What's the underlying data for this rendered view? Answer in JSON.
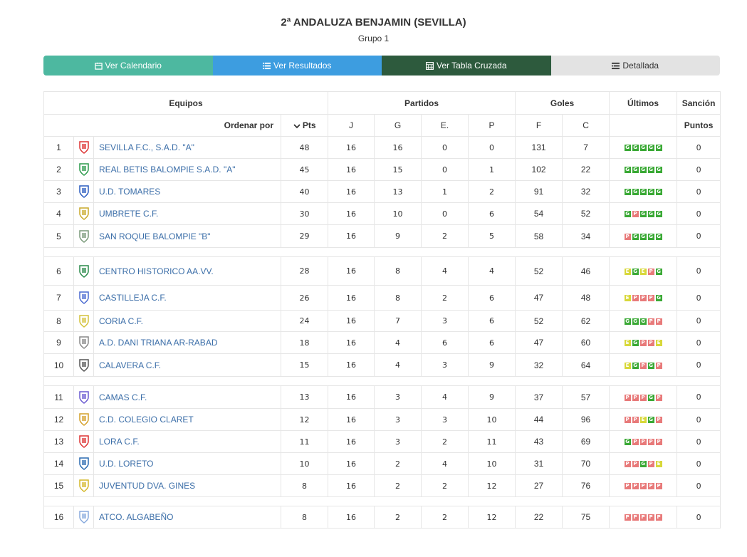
{
  "header": {
    "title": "2ª ANDALUZA BENJAMIN (SEVILLA)",
    "subtitle": "Grupo 1"
  },
  "tabs": [
    {
      "label": "Ver Calendario",
      "icon": "calendar-icon"
    },
    {
      "label": "Ver Resultados",
      "icon": "list-icon"
    },
    {
      "label": "Ver Tabla Cruzada",
      "icon": "table-icon"
    },
    {
      "label": "Detallada",
      "icon": "detail-list-icon"
    }
  ],
  "colors": {
    "tab1": "#4db8a0",
    "tab2": "#3d9de0",
    "tab3": "#2d5a3d",
    "tab4": "#e3e3e3",
    "win": "#3aa935",
    "draw": "#d8d83a",
    "loss": "#e87a7a",
    "link": "#3b6ea8"
  },
  "table": {
    "group_headers": {
      "equipos": "Equipos",
      "partidos": "Partidos",
      "goles": "Goles",
      "ultimos": "Últimos",
      "sancion": "Sanción"
    },
    "sub_headers": {
      "ordenar": "Ordenar por",
      "pts": "Pts",
      "j": "J",
      "g": "G",
      "e": "E.",
      "p": "P",
      "f": "F",
      "c": "C",
      "puntos": "Puntos"
    },
    "rows": [
      {
        "pos": "1",
        "team": "SEVILLA F.C., S.A.D. \"A\"",
        "pts": "48",
        "j": "16",
        "g": "16",
        "e": "0",
        "p": "0",
        "f": "131",
        "c": "7",
        "last": [
          "G",
          "G",
          "G",
          "G",
          "G"
        ],
        "sancion": "0"
      },
      {
        "pos": "2",
        "team": "REAL BETIS BALOMPIE S.A.D. \"A\"",
        "pts": "45",
        "j": "16",
        "g": "15",
        "e": "0",
        "p": "1",
        "f": "102",
        "c": "22",
        "last": [
          "G",
          "G",
          "G",
          "G",
          "G"
        ],
        "sancion": "0"
      },
      {
        "pos": "3",
        "team": "U.D. TOMARES",
        "pts": "40",
        "j": "16",
        "g": "13",
        "e": "1",
        "p": "2",
        "f": "91",
        "c": "32",
        "last": [
          "G",
          "G",
          "G",
          "G",
          "G"
        ],
        "sancion": "0"
      },
      {
        "pos": "4",
        "team": "UMBRETE C.F.",
        "pts": "30",
        "j": "16",
        "g": "10",
        "e": "0",
        "p": "6",
        "f": "54",
        "c": "52",
        "last": [
          "G",
          "P",
          "G",
          "G",
          "G"
        ],
        "sancion": "0"
      },
      {
        "pos": "5",
        "team": "SAN ROQUE BALOMPIE \"B\"",
        "pts": "29",
        "j": "16",
        "g": "9",
        "e": "2",
        "p": "5",
        "f": "58",
        "c": "34",
        "last": [
          "P",
          "G",
          "G",
          "G",
          "G"
        ],
        "sancion": "0"
      },
      {
        "pos": "6",
        "team": "CENTRO HISTORICO AA.VV.",
        "pts": "28",
        "j": "16",
        "g": "8",
        "e": "4",
        "p": "4",
        "f": "52",
        "c": "46",
        "last": [
          "E",
          "G",
          "E",
          "P",
          "G"
        ],
        "sancion": "0"
      },
      {
        "pos": "7",
        "team": "CASTILLEJA C.F.",
        "pts": "26",
        "j": "16",
        "g": "8",
        "e": "2",
        "p": "6",
        "f": "47",
        "c": "48",
        "last": [
          "E",
          "P",
          "P",
          "P",
          "G"
        ],
        "sancion": "0"
      },
      {
        "pos": "8",
        "team": "CORIA C.F.",
        "pts": "24",
        "j": "16",
        "g": "7",
        "e": "3",
        "p": "6",
        "f": "52",
        "c": "62",
        "last": [
          "G",
          "G",
          "G",
          "P",
          "P"
        ],
        "sancion": "0"
      },
      {
        "pos": "9",
        "team": "A.D. DANI TRIANA AR-RABAD",
        "pts": "18",
        "j": "16",
        "g": "4",
        "e": "6",
        "p": "6",
        "f": "47",
        "c": "60",
        "last": [
          "E",
          "G",
          "P",
          "P",
          "E"
        ],
        "sancion": "0"
      },
      {
        "pos": "10",
        "team": "CALAVERA C.F.",
        "pts": "15",
        "j": "16",
        "g": "4",
        "e": "3",
        "p": "9",
        "f": "32",
        "c": "64",
        "last": [
          "E",
          "G",
          "P",
          "G",
          "P"
        ],
        "sancion": "0"
      },
      {
        "pos": "11",
        "team": "CAMAS C.F.",
        "pts": "13",
        "j": "16",
        "g": "3",
        "e": "4",
        "p": "9",
        "f": "37",
        "c": "57",
        "last": [
          "P",
          "P",
          "P",
          "G",
          "P"
        ],
        "sancion": "0"
      },
      {
        "pos": "12",
        "team": "C.D. COLEGIO CLARET",
        "pts": "12",
        "j": "16",
        "g": "3",
        "e": "3",
        "p": "10",
        "f": "44",
        "c": "96",
        "last": [
          "P",
          "P",
          "E",
          "G",
          "P"
        ],
        "sancion": "0"
      },
      {
        "pos": "13",
        "team": "LORA C.F.",
        "pts": "11",
        "j": "16",
        "g": "3",
        "e": "2",
        "p": "11",
        "f": "43",
        "c": "69",
        "last": [
          "G",
          "P",
          "P",
          "P",
          "P"
        ],
        "sancion": "0"
      },
      {
        "pos": "14",
        "team": "U.D. LORETO",
        "pts": "10",
        "j": "16",
        "g": "2",
        "e": "4",
        "p": "10",
        "f": "31",
        "c": "70",
        "last": [
          "P",
          "P",
          "G",
          "P",
          "E"
        ],
        "sancion": "0"
      },
      {
        "pos": "15",
        "team": "JUVENTUD DVA. GINES",
        "pts": "8",
        "j": "16",
        "g": "2",
        "e": "2",
        "p": "12",
        "f": "27",
        "c": "76",
        "last": [
          "P",
          "P",
          "P",
          "P",
          "P"
        ],
        "sancion": "0"
      },
      {
        "pos": "16",
        "team": "ATCO. ALGABEÑO",
        "pts": "8",
        "j": "16",
        "g": "2",
        "e": "2",
        "p": "12",
        "f": "22",
        "c": "75",
        "last": [
          "P",
          "P",
          "P",
          "P",
          "P"
        ],
        "sancion": "0"
      }
    ]
  }
}
